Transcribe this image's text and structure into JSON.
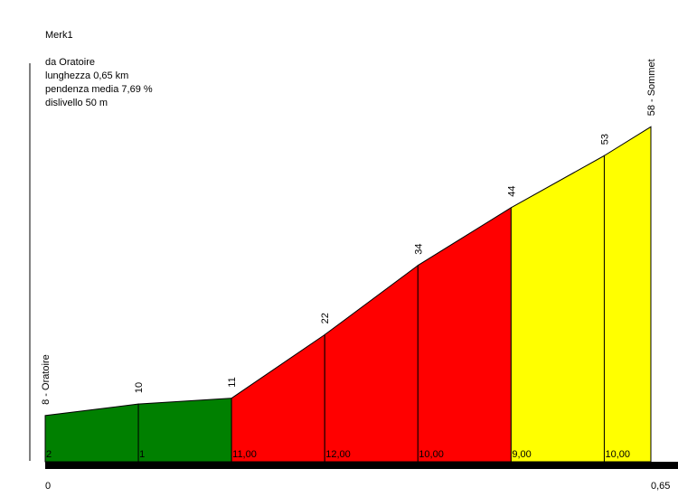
{
  "chart_data": {
    "type": "profile",
    "title": "Merk1",
    "annotations": [
      "da Oratoire",
      "lunghezza 0,65 km",
      "pendenza media 7,69 %",
      "dislivello 50 m"
    ],
    "x": [
      0,
      0.1,
      0.2,
      0.3,
      0.4,
      0.5,
      0.6,
      0.65
    ],
    "values": [
      8,
      10,
      11,
      22,
      34,
      44,
      53,
      58
    ],
    "value_labels": [
      "8 - Oratoire",
      "10",
      "11",
      "22",
      "34",
      "44",
      "53",
      "58 - Sommet"
    ],
    "segment_values": [
      2,
      1,
      11,
      12,
      10,
      9,
      10
    ],
    "segment_value_labels": [
      "2",
      "1",
      "11,00",
      "12,00",
      "10,00",
      "9,00",
      "10,00"
    ],
    "segment_colors": [
      "#008000",
      "#008000",
      "#ff0000",
      "#ff0000",
      "#ff0000",
      "#ffff00",
      "#ffff00"
    ],
    "xlim": [
      0,
      0.65
    ],
    "xticks": [
      0,
      {
        "value": 0.65,
        "label": "0,65"
      }
    ],
    "ylim": [
      0,
      69
    ]
  }
}
